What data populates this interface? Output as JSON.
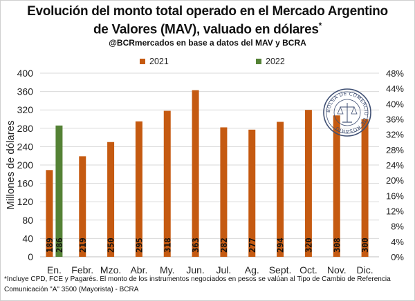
{
  "header": {
    "title_line1": "Evolución del monto total operado en el Mercado Argentino",
    "title_line2": "de Valores (MAV), valuado en dólares",
    "title_mark": "*",
    "subtitle": "@BCRmercados en base a datos del MAV y BCRA"
  },
  "colors": {
    "s2021": "#C55A11",
    "s2022": "#548235",
    "grid": "#d9d9d9",
    "text": "#222222"
  },
  "chart_data": {
    "type": "bar",
    "categories": [
      "En.",
      "Febr.",
      "Mzo.",
      "Abr.",
      "My.",
      "Jun.",
      "Jul.",
      "Ag.",
      "Sept.",
      "Oct.",
      "Nov.",
      "Dic."
    ],
    "series": [
      {
        "name": "2021",
        "values": [
          189,
          219,
          250,
          295,
          318,
          363,
          282,
          277,
          294,
          320,
          308,
          300
        ]
      },
      {
        "name": "2022",
        "values": [
          286,
          null,
          null,
          null,
          null,
          null,
          null,
          null,
          null,
          null,
          null,
          null
        ]
      }
    ],
    "ylabel": "Millones de dólares",
    "ylim": [
      0,
      400
    ],
    "yticks": [
      "0",
      "40",
      "80",
      "120",
      "160",
      "200",
      "240",
      "280",
      "320",
      "360",
      "400"
    ],
    "y2lim": [
      0,
      0.48
    ],
    "y2ticks": [
      "0%",
      "4%",
      "8%",
      "12%",
      "16%",
      "20%",
      "24%",
      "28%",
      "32%",
      "36%",
      "40%",
      "44%",
      "48%"
    ],
    "data_labels": [
      "189",
      "286",
      "219",
      "250",
      "295",
      "318",
      "363",
      "282",
      "277",
      "294",
      "320",
      "308",
      "300"
    ],
    "grid": "horizontal",
    "legend_position": "top"
  },
  "footnote": {
    "line1": "*Incluye CPD, FCE y Pagarés. El monto de los instrumentos  negociados en pesos se valúan al Tipo de Cambio de Referencia",
    "line2": "Comunicación \"A\" 3500 (Mayorista) - BCRA"
  },
  "seal": {
    "text": "BOLSA DE COMERCIO DE ROSARIO"
  }
}
